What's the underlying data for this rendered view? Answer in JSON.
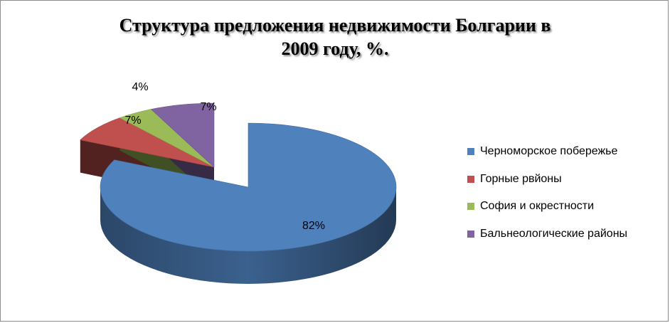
{
  "chart_data": {
    "type": "pie",
    "title_lines": [
      "Структура предложения недвижимости Болгарии в",
      "2009 году, %."
    ],
    "categories": [
      "Черноморское побережье",
      "Горные рвйоны",
      "София и окрестности",
      "Бальнеологические районы"
    ],
    "values": [
      82,
      7,
      4,
      7
    ],
    "data_labels": [
      "82%",
      "7%",
      "4%",
      "7%"
    ],
    "colors": [
      "#4F81BD",
      "#C0504D",
      "#9BBB59",
      "#8064A2"
    ],
    "legend_position": "right",
    "style": "3d-exploded"
  }
}
